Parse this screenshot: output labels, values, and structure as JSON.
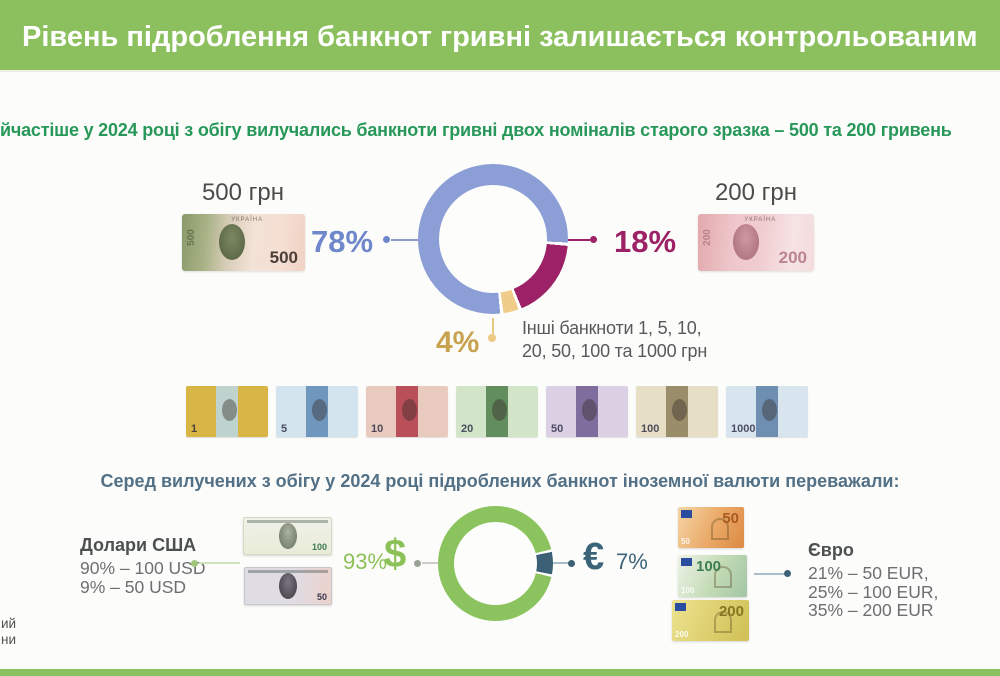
{
  "page": {
    "background": "#fcfcfa",
    "accent_green": "#8cc05e"
  },
  "header": {
    "title": "Рівень підроблення банкнот гривні залишається контрольованим"
  },
  "intro": {
    "text": "йчастіше у 2024 році з обігу вилучались банкноти гривні двох номіналів старого зразка – 500 та 200 гривень"
  },
  "hryvnia_section": {
    "note_500": {
      "label": "500 грн",
      "value": "78%",
      "denomination": "500",
      "country_text": "УКРАЇНА"
    },
    "note_200": {
      "label": "200 грн",
      "value": "18%",
      "denomination": "200",
      "country_text": "УКРАЇНА"
    },
    "others": {
      "value": "4%",
      "line1": "Інші банкноти 1, 5, 10,",
      "line2": "20, 50, 100 та 1000 грн"
    },
    "row_notes": [
      {
        "value": "1",
        "body": "#d9b545",
        "band": "#b9d7e6"
      },
      {
        "value": "5",
        "body": "#d3e4ee",
        "band": "#5d88b4"
      },
      {
        "value": "10",
        "body": "#e9cabf",
        "band": "#b03a45"
      },
      {
        "value": "20",
        "body": "#d2e5c9",
        "band": "#4f7f4b"
      },
      {
        "value": "50",
        "body": "#dbd0e4",
        "band": "#6d5c90"
      },
      {
        "value": "100",
        "body": "#e7dec6",
        "band": "#8b8058"
      },
      {
        "value": "1000",
        "body": "#d8e5ef",
        "band": "#5c80a7"
      }
    ]
  },
  "currency_section": {
    "heading": "Серед вилучених з обігу у 2024 році підроблених банкнот іноземної валюти переважали:",
    "usd": {
      "title": "Долари США",
      "line1": "90% – 100 USD",
      "line2": "9% – 50 USD",
      "value": "93%",
      "symbol": "$",
      "note_values": [
        "100",
        "50"
      ]
    },
    "eur": {
      "title": "Євро",
      "line1": "21% – 50 EUR,",
      "line2": "25% – 100 EUR,",
      "line3": "35% – 200 EUR",
      "value": "7%",
      "symbol": "€",
      "note_values": [
        "50",
        "100",
        "200"
      ]
    }
  },
  "footer": {
    "fragment_line1": "ий",
    "fragment_line2": "ни"
  },
  "chart_data": [
    {
      "type": "pie",
      "style": "donut",
      "title": "йчастіше у 2024 році з обігу вилучались банкноти гривні двох номіналів старого зразка – 500 та 200 гривень",
      "labels": [
        "500 грн",
        "200 грн",
        "Інші банкноти 1, 5, 10, 20, 50, 100 та 1000 грн"
      ],
      "values": [
        78,
        18,
        4
      ],
      "unit": "%",
      "colors": [
        "#8c9ed6",
        "#9c2166",
        "#efcc8a"
      ],
      "legend_position": "callout-labels"
    },
    {
      "type": "pie",
      "style": "donut",
      "title": "Серед вилучених з обігу у 2024 році підроблених банкнот іноземної валюти переважали:",
      "labels": [
        "Долари США ($)",
        "Євро (€)"
      ],
      "values": [
        93,
        7
      ],
      "unit": "%",
      "colors": [
        "#8bc45f",
        "#3c6076"
      ],
      "legend_position": "callout-labels",
      "breakdown": {
        "usd": [
          "90% – 100 USD",
          "9% – 50 USD"
        ],
        "eur": [
          "21% – 50 EUR",
          "25% – 100 EUR",
          "35% – 200 EUR"
        ]
      }
    }
  ]
}
